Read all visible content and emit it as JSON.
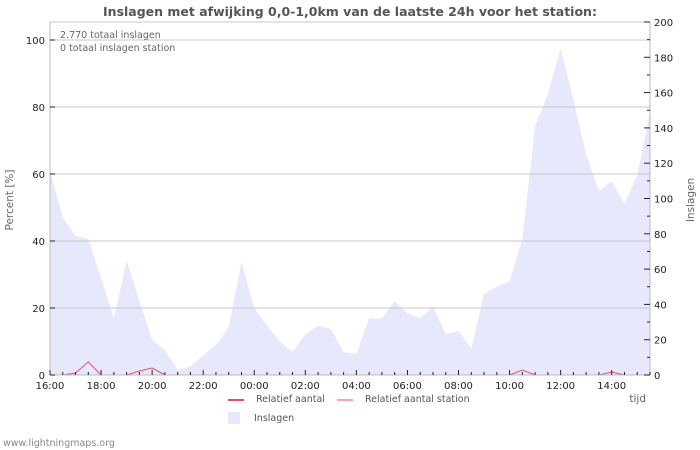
{
  "chart_data": {
    "type": "area",
    "title": "Inslagen met afwijking 0,0-1,0km van de laatste 24h voor het station:",
    "xlabel": "tijd",
    "ylabel_left": "Percent   [%]",
    "ylabel_right": "Inslagen",
    "ylim_left": [
      0,
      105
    ],
    "ylim_right": [
      0,
      200
    ],
    "yticks_left": [
      0,
      20,
      40,
      60,
      80,
      100
    ],
    "yticks_right": [
      0,
      20,
      40,
      60,
      80,
      100,
      120,
      140,
      160,
      180,
      200
    ],
    "xticks": [
      "16:00",
      "18:00",
      "20:00",
      "22:00",
      "00:00",
      "02:00",
      "04:00",
      "06:00",
      "08:00",
      "10:00",
      "12:00",
      "14:00"
    ],
    "grid": true,
    "annotations": [
      "2.770 totaal inslagen",
      "0 totaal inslagen station"
    ],
    "x": [
      "16:00",
      "16:30",
      "17:00",
      "17:30",
      "18:00",
      "18:30",
      "19:00",
      "19:30",
      "20:00",
      "20:30",
      "21:00",
      "21:30",
      "22:00",
      "22:30",
      "23:00",
      "23:30",
      "00:00",
      "00:30",
      "01:00",
      "01:30",
      "02:00",
      "02:30",
      "03:00",
      "03:30",
      "04:00",
      "04:30",
      "05:00",
      "05:30",
      "06:00",
      "06:30",
      "07:00",
      "07:30",
      "08:00",
      "08:30",
      "09:00",
      "09:30",
      "10:00",
      "10:30",
      "11:00",
      "11:30",
      "12:00",
      "12:30",
      "13:00",
      "13:30",
      "14:00",
      "14:30",
      "15:00",
      "15:30"
    ],
    "series": [
      {
        "name": "Inslagen",
        "axis": "right",
        "color": "#e8e8fc",
        "values": [
          116,
          89,
          79,
          77,
          55,
          32,
          65,
          42,
          20,
          14,
          3,
          5,
          11,
          17,
          27,
          64,
          38,
          28,
          19,
          13,
          23,
          28,
          26,
          13,
          12,
          32,
          32,
          42,
          35,
          32,
          39,
          23,
          25,
          15,
          46,
          50,
          53,
          77,
          141,
          159,
          185,
          156,
          125,
          104,
          110,
          97,
          113,
          149
        ]
      },
      {
        "name": "Relatief aantal",
        "axis": "left",
        "color": "#e05070",
        "values": [
          null,
          0,
          0.6,
          3.9,
          0,
          null,
          0,
          1.2,
          2.1,
          0,
          null,
          null,
          null,
          null,
          null,
          null,
          null,
          null,
          null,
          null,
          null,
          null,
          null,
          null,
          null,
          null,
          null,
          null,
          null,
          null,
          null,
          null,
          null,
          null,
          null,
          null,
          0,
          1.5,
          0,
          null,
          null,
          null,
          null,
          0,
          0.9,
          0,
          null,
          null
        ]
      },
      {
        "name": "Relatief aantal station",
        "axis": "left",
        "color": "#f4a0a8",
        "values": []
      }
    ],
    "legend_position": "bottom"
  },
  "legend": {
    "items": [
      {
        "label": "Relatief aantal",
        "color": "#e0506a",
        "kind": "line"
      },
      {
        "label": "Relatief aantal station",
        "color": "#f4a4ac",
        "kind": "line"
      },
      {
        "label": "Inslagen",
        "color": "#e8e8fc",
        "kind": "box"
      }
    ]
  },
  "footer": "www.lightningmaps.org"
}
